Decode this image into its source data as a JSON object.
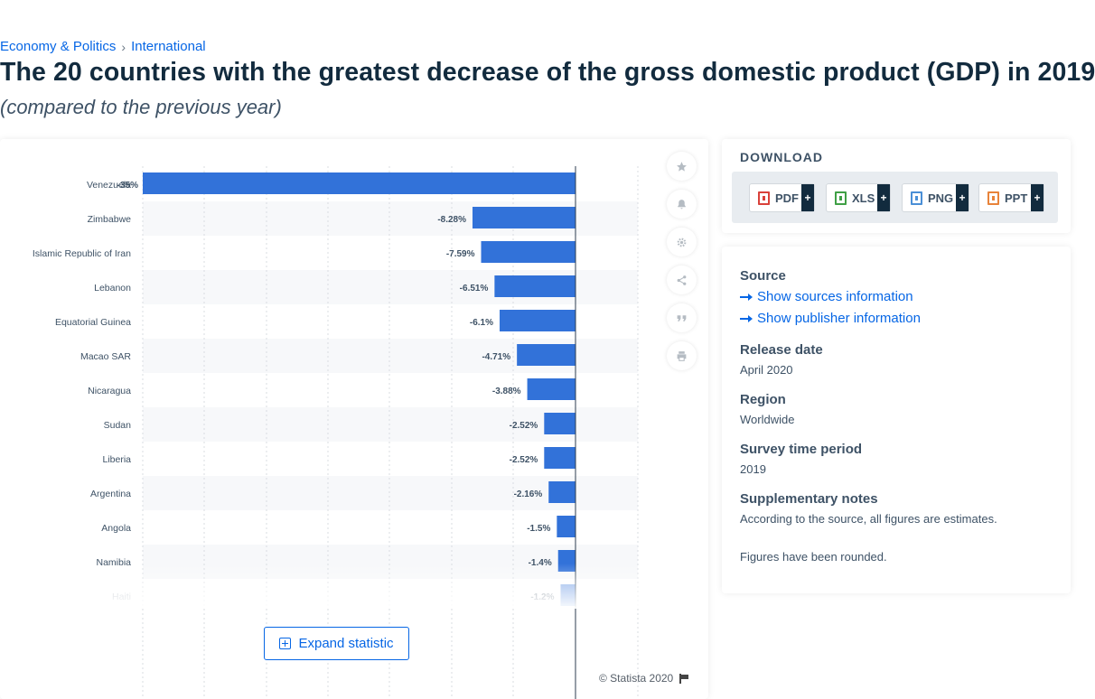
{
  "breadcrumb": {
    "items": [
      "Economy & Politics",
      "International"
    ],
    "separator": "›"
  },
  "page": {
    "title": "The 20 countries with the greatest decrease of the gross domestic product (GDP) in 2019",
    "subtitle": "(compared to the previous year)"
  },
  "chart_data": {
    "type": "bar",
    "orientation": "horizontal",
    "categories": [
      "Venezuela",
      "Zimbabwe",
      "Islamic Republic of Iran",
      "Lebanon",
      "Equatorial Guinea",
      "Macao SAR",
      "Nicaragua",
      "Sudan",
      "Liberia",
      "Argentina",
      "Angola",
      "Namibia",
      "Haiti"
    ],
    "values": [
      -35,
      -8.28,
      -7.59,
      -6.51,
      -6.1,
      -4.71,
      -3.88,
      -2.52,
      -2.52,
      -2.16,
      -1.5,
      -1.4,
      -1.2
    ],
    "data_labels": [
      "-35%",
      "-8.28%",
      "-7.59%",
      "-6.51%",
      "-6.1%",
      "-4.71%",
      "-3.88%",
      "-2.52%",
      "-2.52%",
      "-2.16%",
      "-1.5%",
      "-1.4%",
      "-1.2%"
    ],
    "axis_break": true,
    "grid": true,
    "bar_color": "#3272d9",
    "xlim_broken_segment": [
      -8.28,
      0
    ]
  },
  "chart_footer": {
    "expand_label": "Expand statistic",
    "copyright": "© Statista 2020"
  },
  "tools": [
    "star-icon",
    "bell-icon",
    "gear-icon",
    "share-icon",
    "quote-icon",
    "print-icon"
  ],
  "download": {
    "title": "DOWNLOAD",
    "buttons": [
      {
        "label": "PDF",
        "color": "#d9413a"
      },
      {
        "label": "XLS",
        "color": "#3f9f45"
      },
      {
        "label": "PNG",
        "color": "#4a8fd6"
      },
      {
        "label": "PPT",
        "color": "#e8833a"
      }
    ],
    "plus": "+"
  },
  "info": {
    "source_label": "Source",
    "show_sources": "Show sources information",
    "show_publisher": "Show publisher information",
    "release_label": "Release date",
    "release_value": "April 2020",
    "region_label": "Region",
    "region_value": "Worldwide",
    "survey_label": "Survey time period",
    "survey_value": "2019",
    "notes_label": "Supplementary notes",
    "notes_line1": "According to the source, all figures are estimates.",
    "notes_line2": "Figures have been rounded."
  }
}
